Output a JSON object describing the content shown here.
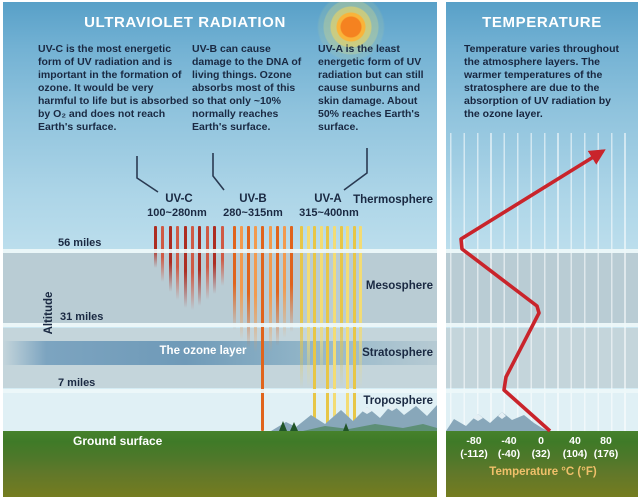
{
  "uv_panel": {
    "title": "ULTRAVIOLET RADIATION",
    "uvc_text": "UV-C is the most energetic form of UV radiation and is important in the formation of ozone. It would be very harmful to life but is absorbed by O₂ and does not reach Earth's surface.",
    "uvb_text": "UV-B can cause damage to the DNA of living things. Ozone absorbs most of this so that only ~10% normally reaches Earth's surface.",
    "uva_text": "UV-A is the least energetic form of UV radiation but can still cause sunburns and skin damage. About 50% reaches Earth's surface.",
    "uvc_label": "UV-C",
    "uvc_range": "100~280nm",
    "uvb_label": "UV-B",
    "uvb_range": "280~315nm",
    "uva_label": "UV-A",
    "uva_range": "315~400nm",
    "ozone_label": "The ozone layer",
    "ground_label": "Ground surface"
  },
  "temp_panel": {
    "title": "TEMPERATURE",
    "description": "Temperature varies throughout the atmosphere layers. The warmer temperatures of the stratosphere are due to the absorption of UV radiation by the ozone layer.",
    "scale_c": [
      "-80",
      "-40",
      "0",
      "40",
      "80"
    ],
    "scale_f": [
      "(-112)",
      "(-40)",
      "(32)",
      "(104)",
      "(176)"
    ],
    "axis_label": "Temperature °C (°F)"
  },
  "layers": {
    "thermosphere": "Thermosphere",
    "mesosphere": "Mesosphere",
    "stratosphere": "Stratosphere",
    "troposphere": "Troposphere"
  },
  "altitude": {
    "axis_label": "Altitude",
    "mile56": "56 miles",
    "mile31": "31 miles",
    "mile7": "7 miles"
  },
  "colors": {
    "uvc_ray": "#ad2d22",
    "uvb_ray": "#e0641c",
    "uva_ray": "#e7c647",
    "temperature_curve": "#c9242b",
    "sun_core": "#f58220",
    "ozone_band": "#6f9ab8",
    "ground_green": "#3f7a28",
    "sky_blue": "#58a0c8",
    "text_navy": "#1a2942",
    "axis_label_gold": "#f0c06a"
  }
}
